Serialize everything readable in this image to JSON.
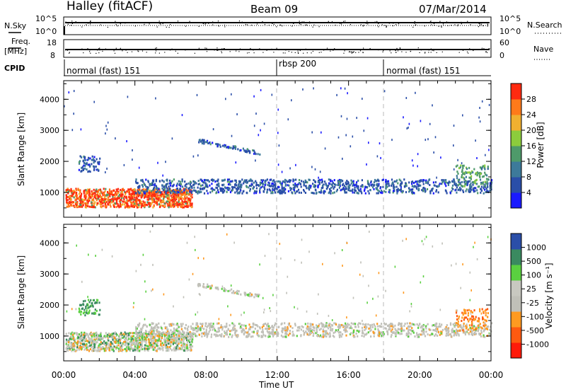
{
  "header": {
    "title": "Halley (fitACF)",
    "beam": "Beam 09",
    "date": "07/Mar/2014"
  },
  "summary": {
    "nsky_label": "N.Sky",
    "nsky_ticks": [
      "10^5",
      "10^0"
    ],
    "nsearch_label": "N.Search",
    "nsearch_ticks": [
      "10^5",
      "10^0"
    ],
    "freq_label_1": "Freq.",
    "freq_label_2": "[MHz]",
    "freq_ticks": [
      "18",
      "8"
    ],
    "nave_label": "Nave",
    "nave_ticks": [
      "60",
      "0"
    ],
    "cpid_label": "CPID",
    "cpid_segments": [
      "normal (fast) 151",
      "rbsp 200",
      "normal (fast) 151"
    ]
  },
  "x_axis": {
    "label": "Time UT",
    "ticks": [
      "00:00",
      "04:00",
      "08:00",
      "12:00",
      "16:00",
      "20:00",
      "00:00"
    ]
  },
  "colors": {
    "power_scale": [
      "#1a1aff",
      "#2a4ea8",
      "#3d7a9a",
      "#4e9a6a",
      "#8ccc3c",
      "#f0b030",
      "#ff7a1a",
      "#ff2a10"
    ],
    "velocity_scale": [
      "#ff1a0a",
      "#ff5a10",
      "#ff9a20",
      "#c0c0b8",
      "#c8c8c0",
      "#5ad040",
      "#3a8a60",
      "#2a4ea8"
    ]
  },
  "chart_data": [
    {
      "type": "heatmap",
      "name": "power panel",
      "ylabel": "Slant Range [km]",
      "xlabel": "",
      "x_range_hours": [
        0,
        24
      ],
      "ylim": [
        200,
        4600
      ],
      "y_ticks": [
        "1000",
        "2000",
        "3000",
        "4000"
      ],
      "colorbar_label": "Power [dB]",
      "colorbar_ticks": [
        "28",
        "24",
        "20",
        "16",
        "12",
        "8",
        "4"
      ],
      "features": [
        {
          "kind": "band",
          "t_start": 0.1,
          "t_end": 7.2,
          "range_start": 550,
          "range_end": 1150,
          "level": "high"
        },
        {
          "kind": "band",
          "t_start": 4.0,
          "t_end": 24.0,
          "range_start": 1000,
          "range_end": 1450,
          "level": "low"
        },
        {
          "kind": "band",
          "t_start": 0.8,
          "t_end": 2.0,
          "range_start": 1700,
          "range_end": 2200,
          "level": "low"
        },
        {
          "kind": "band",
          "t_start": 22.0,
          "t_end": 23.8,
          "range_start": 1200,
          "range_end": 1900,
          "level": "medium"
        },
        {
          "kind": "arc",
          "t_start": 7.5,
          "t_end": 11.0,
          "range_start": 2700,
          "range_end": 2300,
          "level": "low"
        }
      ]
    },
    {
      "type": "heatmap",
      "name": "velocity panel",
      "ylabel": "Slant Range [km]",
      "xlabel": "Time UT",
      "x_range_hours": [
        0,
        24
      ],
      "ylim": [
        200,
        4600
      ],
      "y_ticks": [
        "1000",
        "2000",
        "3000",
        "4000"
      ],
      "colorbar_label": "Velocity [m s⁻¹]",
      "colorbar_ticks": [
        "1000",
        "500",
        "100",
        "25",
        "-25",
        "-100",
        "-500",
        "-1000"
      ],
      "features": [
        {
          "kind": "band",
          "t_start": 0.1,
          "t_end": 7.2,
          "range_start": 550,
          "range_end": 1150,
          "level": "mixed"
        },
        {
          "kind": "band",
          "t_start": 4.0,
          "t_end": 24.0,
          "range_start": 1000,
          "range_end": 1450,
          "level": "near-zero"
        },
        {
          "kind": "band",
          "t_start": 0.8,
          "t_end": 2.0,
          "range_start": 1700,
          "range_end": 2200,
          "level": "positive"
        },
        {
          "kind": "band",
          "t_start": 22.0,
          "t_end": 23.8,
          "range_start": 1200,
          "range_end": 1900,
          "level": "negative"
        },
        {
          "kind": "arc",
          "t_start": 7.5,
          "t_end": 11.0,
          "range_start": 2700,
          "range_end": 2300,
          "level": "near-zero"
        }
      ]
    }
  ]
}
